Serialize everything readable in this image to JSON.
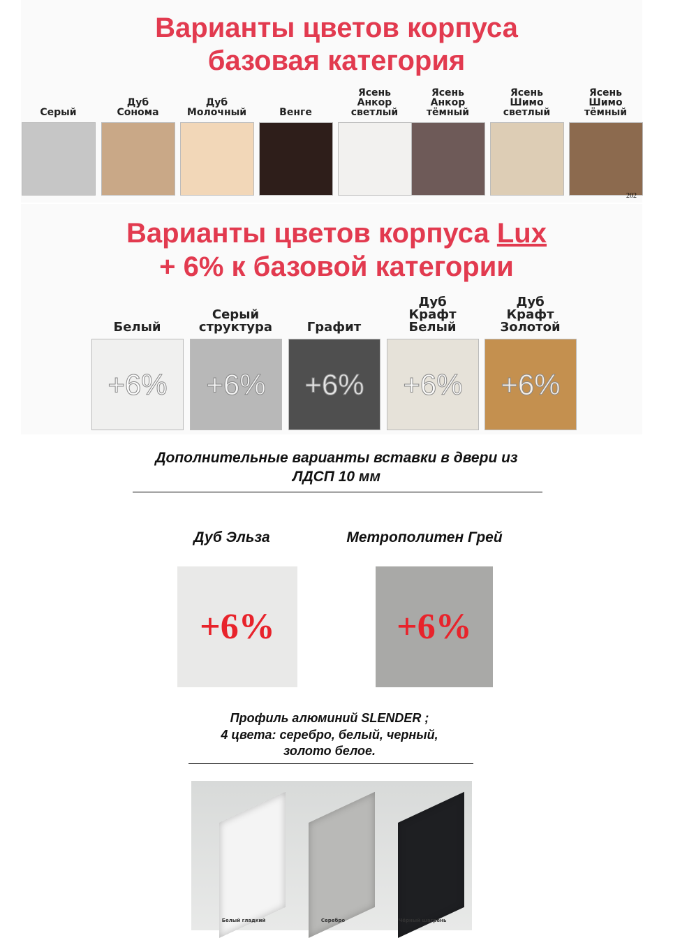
{
  "base": {
    "title1": "Варианты цветов корпуса",
    "title2": "базовая категория",
    "swatches": [
      {
        "label": "Серый",
        "color": "#c6c6c6"
      },
      {
        "label": "Дуб Сонома",
        "color": "#c9a887"
      },
      {
        "label": "Дуб Молочный",
        "color": "#f2d7b8"
      },
      {
        "label": "Венге",
        "color": "#2e1e1a"
      },
      {
        "label": "Ясень Анкор светлый",
        "color": "#f2f1ef"
      },
      {
        "label": "Ясень Анкор тёмный",
        "color": "#6e5a58"
      },
      {
        "label": "Ясень Шимо светлый",
        "color": "#ddcdb5"
      },
      {
        "label": "Ясень Шимо тёмный",
        "color": "#8c6a4e"
      }
    ],
    "corner_text": "202"
  },
  "lux": {
    "title1": "Варианты цветов корпуса ",
    "title_link": "Lux",
    "title2": "+ 6% к базовой категории",
    "badge": "+6%",
    "swatches": [
      {
        "label": "Белый",
        "color": "#f0f0ef"
      },
      {
        "label": "Серый структура",
        "color": "#b8b8b8"
      },
      {
        "label": "Графит",
        "color": "#4f4f4f"
      },
      {
        "label": "Дуб Крафт Белый",
        "color": "#e6e2d9"
      },
      {
        "label": "Дуб Крафт Золотой",
        "color": "#c4904f"
      }
    ]
  },
  "inserts": {
    "heading1": "Дополнительные варианты вставки в двери из",
    "heading2": "ЛДСП 10 мм",
    "items": [
      {
        "label": "Дуб Эльза",
        "color": "#e9e9e8",
        "badge": "+6%"
      },
      {
        "label": "Метрополитен Грей",
        "color": "#a9a9a7",
        "badge": "+6%"
      }
    ]
  },
  "profile": {
    "line1": "Профиль алюминий SLENDER ;",
    "line2": "4 цвета: серебро, белый, черный,",
    "line3": "золото белое.",
    "items": [
      {
        "label": "Белый гладкий",
        "color": "#f4f4f4"
      },
      {
        "label": "Серебро",
        "color": "#b9b9b7"
      },
      {
        "label": "Чёрный шагрень",
        "color": "#1e1f22"
      }
    ]
  }
}
